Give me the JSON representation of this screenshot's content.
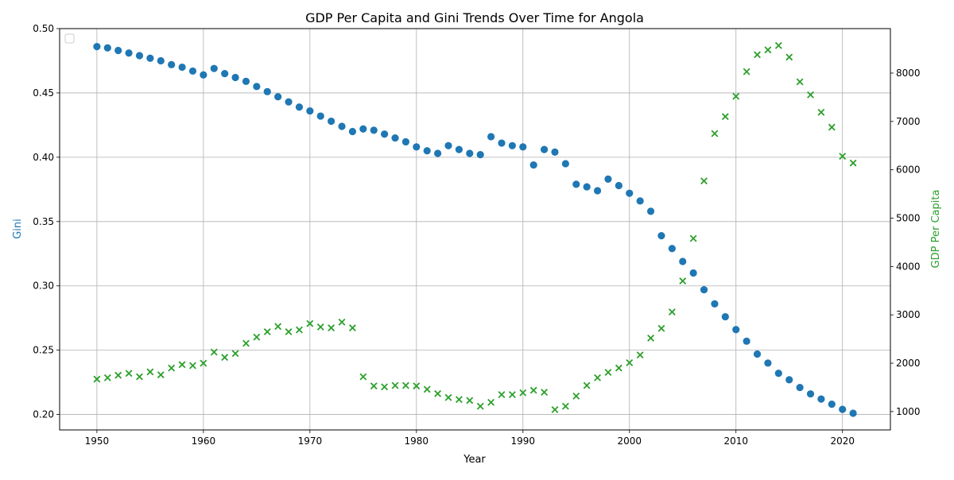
{
  "chart_data": {
    "type": "scatter",
    "title": "GDP Per Capita and Gini Trends Over Time for Angola",
    "xlabel": "Year",
    "ylabel_left": "Gini",
    "ylabel_right": "GDP Per Capita",
    "xlim": [
      1946.5,
      2024.5
    ],
    "ylim_left": [
      0.188,
      0.5
    ],
    "ylim_right": [
      620,
      8920
    ],
    "x_ticks": [
      1950,
      1960,
      1970,
      1980,
      1990,
      2000,
      2010,
      2020
    ],
    "y_ticks_left": [
      0.2,
      0.25,
      0.3,
      0.35,
      0.4,
      0.45,
      0.5
    ],
    "y_tick_labels_left": [
      "0.20",
      "0.25",
      "0.30",
      "0.35",
      "0.40",
      "0.45",
      "0.50"
    ],
    "y_ticks_right": [
      1000,
      2000,
      3000,
      4000,
      5000,
      6000,
      7000,
      8000
    ],
    "grid": true,
    "legend_placement": "top-left",
    "colors": {
      "gini": "#1f77b4",
      "gdp": "#2ca02c"
    },
    "series": [
      {
        "axis": "left",
        "marker": "circle",
        "x": [
          1950,
          1951,
          1952,
          1953,
          1954,
          1955,
          1956,
          1957,
          1958,
          1959,
          1960,
          1961,
          1962,
          1963,
          1964,
          1965,
          1966,
          1967,
          1968,
          1969,
          1970,
          1971,
          1972,
          1973,
          1974,
          1975,
          1976,
          1977,
          1978,
          1979,
          1980,
          1981,
          1982,
          1983,
          1984,
          1985,
          1986,
          1987,
          1988,
          1989,
          1990,
          1991,
          1992,
          1993,
          1994,
          1995,
          1996,
          1997,
          1998,
          1999,
          2000,
          2001,
          2002,
          2003,
          2004,
          2005,
          2006,
          2007,
          2008,
          2009,
          2010,
          2011,
          2012,
          2013,
          2014,
          2015,
          2016,
          2017,
          2018,
          2019,
          2020,
          2021
        ],
        "values": [
          0.486,
          0.485,
          0.483,
          0.481,
          0.479,
          0.477,
          0.475,
          0.472,
          0.47,
          0.467,
          0.464,
          0.469,
          0.465,
          0.462,
          0.459,
          0.455,
          0.451,
          0.447,
          0.443,
          0.439,
          0.436,
          0.432,
          0.428,
          0.424,
          0.42,
          0.422,
          0.421,
          0.418,
          0.415,
          0.412,
          0.408,
          0.405,
          0.403,
          0.409,
          0.406,
          0.403,
          0.402,
          0.416,
          0.411,
          0.409,
          0.408,
          0.394,
          0.406,
          0.404,
          0.395,
          0.379,
          0.377,
          0.374,
          0.383,
          0.378,
          0.372,
          0.366,
          0.358,
          0.339,
          0.329,
          0.319,
          0.31,
          0.297,
          0.286,
          0.276,
          0.266,
          0.257,
          0.247,
          0.24,
          0.232,
          0.227,
          0.221,
          0.216,
          0.212,
          0.208,
          0.204,
          0.201
        ]
      },
      {
        "axis": "right",
        "marker": "x",
        "x": [
          1950,
          1951,
          1952,
          1953,
          1954,
          1955,
          1956,
          1957,
          1958,
          1959,
          1960,
          1961,
          1962,
          1963,
          1964,
          1965,
          1966,
          1967,
          1968,
          1969,
          1970,
          1971,
          1972,
          1973,
          1974,
          1975,
          1976,
          1977,
          1978,
          1979,
          1980,
          1981,
          1982,
          1983,
          1984,
          1985,
          1986,
          1987,
          1988,
          1989,
          1990,
          1991,
          1992,
          1993,
          1994,
          1995,
          1996,
          1997,
          1998,
          1999,
          2000,
          2001,
          2002,
          2003,
          2004,
          2005,
          2006,
          2007,
          2008,
          2009,
          2010,
          2011,
          2012,
          2013,
          2014,
          2015,
          2016,
          2017,
          2018,
          2019,
          2020,
          2021
        ],
        "values": [
          1670,
          1700,
          1750,
          1790,
          1720,
          1820,
          1760,
          1900,
          1970,
          1950,
          2000,
          2230,
          2120,
          2200,
          2410,
          2540,
          2650,
          2760,
          2650,
          2690,
          2820,
          2750,
          2730,
          2850,
          2730,
          1720,
          1530,
          1510,
          1540,
          1540,
          1530,
          1460,
          1370,
          1290,
          1250,
          1230,
          1110,
          1190,
          1350,
          1350,
          1390,
          1440,
          1400,
          1040,
          1110,
          1320,
          1540,
          1700,
          1810,
          1900,
          2010,
          2170,
          2520,
          2720,
          3060,
          3700,
          4580,
          5770,
          6750,
          7100,
          7520,
          8030,
          8380,
          8480,
          8570,
          8330,
          7820,
          7550,
          7190,
          6880,
          6280,
          6140
        ]
      }
    ]
  }
}
